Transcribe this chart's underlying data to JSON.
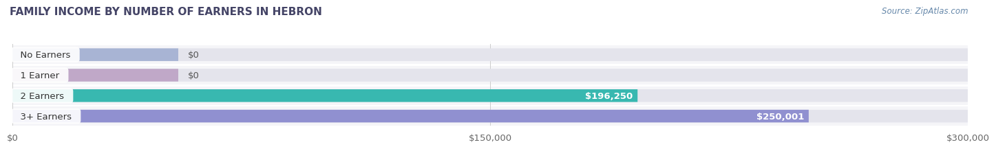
{
  "title": "FAMILY INCOME BY NUMBER OF EARNERS IN HEBRON",
  "source": "Source: ZipAtlas.com",
  "categories": [
    "No Earners",
    "1 Earner",
    "2 Earners",
    "3+ Earners"
  ],
  "values": [
    0,
    0,
    196250,
    250001
  ],
  "bar_colors": [
    "#a8b4d4",
    "#c0a8c8",
    "#38b8b0",
    "#9090d0"
  ],
  "background_color": "#f4f4f8",
  "bar_bg_color": "#e4e4ec",
  "xlim": [
    0,
    300000
  ],
  "xticks": [
    0,
    150000,
    300000
  ],
  "xtick_labels": [
    "$0",
    "$150,000",
    "$300,000"
  ],
  "value_labels": [
    "$0",
    "$0",
    "$196,250",
    "$250,001"
  ],
  "zero_bar_width": 52000,
  "title_fontsize": 11,
  "tick_fontsize": 9.5,
  "label_fontsize": 9.5,
  "bar_height": 0.62,
  "fig_bg": "#ffffff",
  "row_bg": "#f5f5f8"
}
